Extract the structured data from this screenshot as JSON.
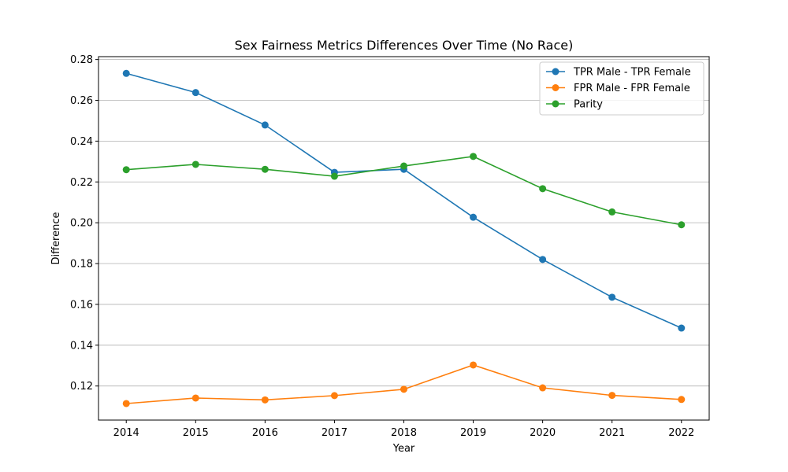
{
  "chart_data": {
    "type": "line",
    "title": "Sex Fairness Metrics Differences Over Time (No Race)",
    "xlabel": "Year",
    "ylabel": "Difference",
    "x": [
      2014,
      2015,
      2016,
      2017,
      2018,
      2019,
      2020,
      2021,
      2022
    ],
    "xlim": [
      2013.6,
      2022.4
    ],
    "ylim": [
      0.1033,
      0.2814
    ],
    "yticks": [
      0.12,
      0.14,
      0.16,
      0.18,
      0.2,
      0.22,
      0.24,
      0.26,
      0.28
    ],
    "ytick_labels": [
      "0.12",
      "0.14",
      "0.16",
      "0.18",
      "0.20",
      "0.22",
      "0.24",
      "0.26",
      "0.28"
    ],
    "grid": "horizontal",
    "legend_position": "top-right",
    "series": [
      {
        "name": "TPR Male - TPR Female",
        "color": "#1f77b4",
        "values": [
          0.2732,
          0.2638,
          0.2479,
          0.2247,
          0.2262,
          0.2027,
          0.182,
          0.1635,
          0.1484
        ]
      },
      {
        "name": "FPR Male - FPR Female",
        "color": "#ff7f0e",
        "values": [
          0.1114,
          0.1141,
          0.1132,
          0.1153,
          0.1184,
          0.1303,
          0.1191,
          0.1154,
          0.1134
        ]
      },
      {
        "name": "Parity",
        "color": "#2ca02c",
        "values": [
          0.226,
          0.2286,
          0.2262,
          0.2228,
          0.2278,
          0.2325,
          0.2167,
          0.2053,
          0.199
        ]
      }
    ]
  }
}
